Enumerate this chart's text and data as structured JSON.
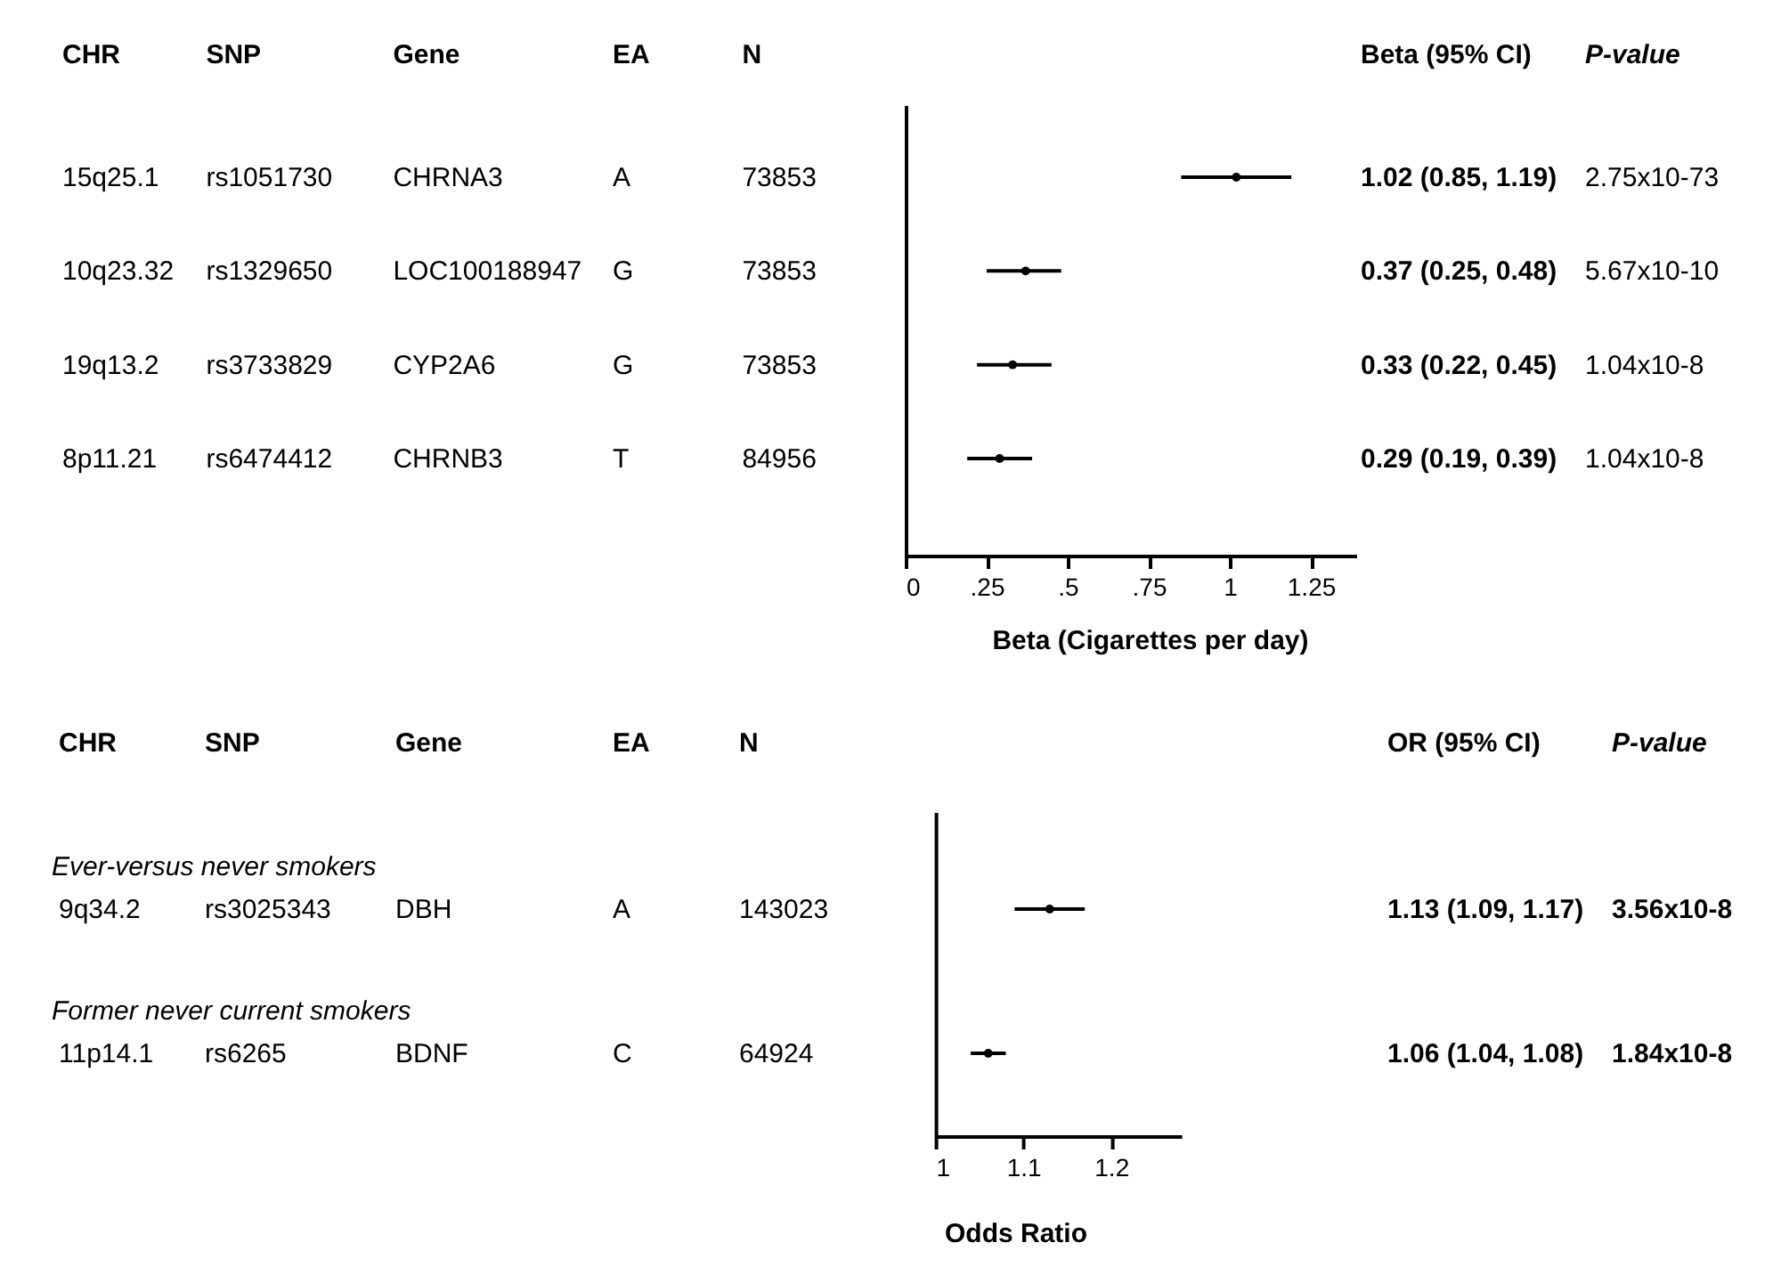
{
  "chart_data": [
    {
      "type": "scatter",
      "orientation": "horizontal",
      "xlabel": "Beta (Cigarettes per day)",
      "categories": [
        null,
        null,
        null,
        null
      ],
      "values": [
        1.02,
        0.37,
        0.33,
        0.29
      ],
      "errors": [
        [
          0.85,
          1.19
        ],
        [
          0.25,
          0.48
        ],
        [
          0.22,
          0.45
        ],
        [
          0.19,
          0.39
        ]
      ],
      "value_labels": [
        "1.02 (0.85, 1.19)",
        "0.37 (0.25, 0.48)",
        "0.33 (0.22, 0.45)",
        "0.29 (0.19, 0.39)"
      ],
      "color": "#000000",
      "marker": "circle",
      "xlim": [
        0,
        1.39
      ],
      "xticks": [
        0,
        {
          "value": 0.25,
          "label": ".25"
        },
        {
          "value": 0.5,
          "label": ".5"
        },
        {
          "value": 0.75,
          "label": ".75"
        },
        1,
        1.25
      ],
      "annotations": [
        "CHR",
        "SNP",
        "Gene",
        "EA",
        "N",
        "Beta (95% CI)",
        "P-value",
        "15q25.1",
        "rs1051730",
        "CHRNA3",
        "A",
        "73853",
        "2.75x10-73",
        "10q23.32",
        "rs1329650",
        "LOC100188947",
        "G",
        "73853",
        "5.67x10-10",
        "19q13.2",
        "rs3733829",
        "CYP2A6",
        "G",
        "73853",
        "1.04x10-8",
        "8p11.21",
        "rs6474412",
        "CHRNB3",
        "T",
        "84956",
        "1.04x10-8"
      ]
    },
    {
      "type": "scatter",
      "orientation": "horizontal",
      "xlabel": "Odds Ratio",
      "categories": [
        null,
        null
      ],
      "values": [
        1.13,
        1.06
      ],
      "errors": [
        [
          1.09,
          1.17
        ],
        [
          1.04,
          1.08
        ]
      ],
      "value_labels": [
        "1.13 (1.09, 1.17)",
        "1.06 (1.04, 1.08)"
      ],
      "color": "#000000",
      "marker": "circle",
      "xlim": [
        1,
        1.28
      ],
      "xticks": [
        1,
        1.1,
        1.2
      ],
      "annotations": [
        "CHR",
        "SNP",
        "Gene",
        "EA",
        "N",
        "OR (95% CI)",
        "P-value",
        "9q34.2",
        "rs3025343",
        "DBH",
        "A",
        "143023",
        "3.56x10-8",
        "11p14.1",
        "rs6265",
        "BDNF",
        "C",
        "64924",
        "1.84x10-8",
        "Ever-versus never smokers",
        "Former never current smokers"
      ]
    }
  ]
}
